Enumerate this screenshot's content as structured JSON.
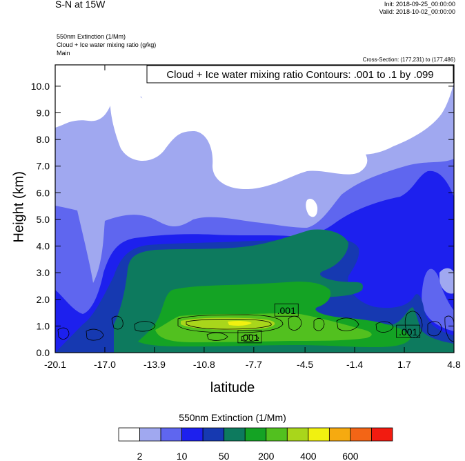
{
  "header": {
    "title": "S-N at 15W",
    "init": "Init: 2018-09-25_00:00:00",
    "valid": "Valid: 2018-10-02_00:00:00",
    "field1": "550nm Extinction   (1/Mm)",
    "field2": "Cloud + Ice water mixing ratio   (g/kg)",
    "field3": "Main",
    "cross_section": "Cross-Section: (177,231) to (177,486)"
  },
  "chart_data": {
    "type": "heatmap",
    "title": "S-N at 15W",
    "xlabel": "latitude",
    "ylabel": "Height (km)",
    "xlim": [
      -20.1,
      4.8
    ],
    "ylim": [
      0.0,
      10.8
    ],
    "x_ticks": [
      "-20.1",
      "-17.0",
      "-13.9",
      "-10.8",
      "-7.7",
      "-4.5",
      "-1.4",
      "1.7",
      "4.8"
    ],
    "y_ticks": [
      "0.0",
      "1.0",
      "2.0",
      "3.0",
      "4.0",
      "5.0",
      "6.0",
      "7.0",
      "8.0",
      "9.0",
      "10.0"
    ],
    "contour_info": "Cloud + Ice water mixing ratio Contours: .001 to .1 by .099",
    "contour_labels": [
      {
        "text": ".001",
        "x": -5.7,
        "y": 1.6
      },
      {
        "text": ".001",
        "x": -8.0,
        "y": 0.6
      },
      {
        "text": ".001",
        "x": 1.9,
        "y": 0.8
      }
    ],
    "colorbar": {
      "title": "550nm Extinction  (1/Mm)",
      "labels": [
        "2",
        "10",
        "50",
        "200",
        "400",
        "600"
      ],
      "colors": [
        "#ffffff",
        "#a0a8f0",
        "#5f66ef",
        "#1d20ee",
        "#1639b1",
        "#0d7a5e",
        "#14a324",
        "#52c01f",
        "#a9d61b",
        "#f1f110",
        "#f6aa10",
        "#f36516",
        "#f21b10"
      ]
    }
  }
}
